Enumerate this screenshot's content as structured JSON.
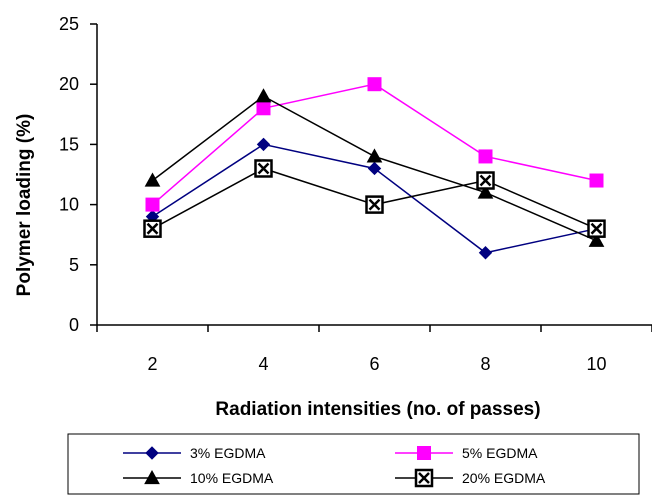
{
  "chart_data": {
    "type": "line",
    "title": "",
    "xlabel": "Radiation intensities (no. of passes)",
    "ylabel": "Polymer loading (%)",
    "x": [
      2,
      4,
      6,
      8,
      10
    ],
    "ylim": [
      0,
      25
    ],
    "yticks": [
      0,
      5,
      10,
      15,
      20,
      25
    ],
    "grid": false,
    "legend_position": "bottom",
    "series": [
      {
        "name": "3% EGDMA",
        "values": [
          9,
          15,
          13,
          6,
          8
        ],
        "color": "#000080",
        "marker": "diamond"
      },
      {
        "name": "5% EGDMA",
        "values": [
          10,
          18,
          20,
          14,
          12
        ],
        "color": "#ff00ff",
        "marker": "square"
      },
      {
        "name": "10% EGDMA",
        "values": [
          12,
          19,
          14,
          11,
          7
        ],
        "color": "#000000",
        "marker": "triangle"
      },
      {
        "name": "20% EGDMA",
        "values": [
          8,
          13,
          10,
          12,
          8
        ],
        "color": "#000000",
        "marker": "x-square"
      }
    ]
  }
}
